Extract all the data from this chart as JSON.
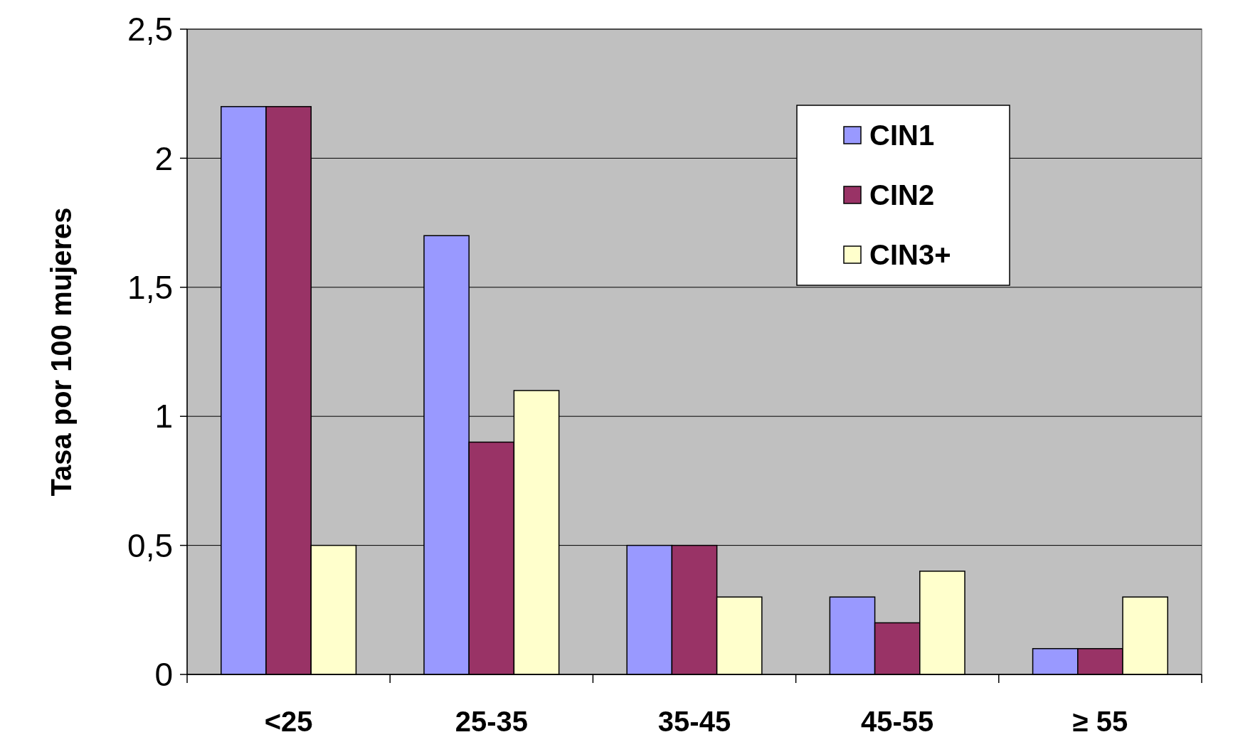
{
  "chart_data": {
    "type": "bar",
    "ylabel": "Tasa por 100 mujeres",
    "categories": [
      "<25",
      "25-35",
      "35-45",
      "45-55",
      "≥ 55"
    ],
    "series": [
      {
        "name": "CIN1",
        "color": "#9999ff",
        "values": [
          2.2,
          1.7,
          0.5,
          0.3,
          0.1
        ]
      },
      {
        "name": "CIN2",
        "color": "#993366",
        "values": [
          2.2,
          0.9,
          0.5,
          0.2,
          0.1
        ]
      },
      {
        "name": "CIN3+",
        "color": "#ffffcc",
        "values": [
          0.5,
          1.1,
          0.3,
          0.4,
          0.3
        ]
      }
    ],
    "ylim": [
      0,
      2.5
    ],
    "yticks": [
      0,
      {
        "value": 0.5,
        "label": "0,5"
      },
      1,
      {
        "value": 1.5,
        "label": "1,5"
      },
      2,
      {
        "value": 2.5,
        "label": "2,5"
      }
    ],
    "grid": "y",
    "legend": "top right"
  }
}
